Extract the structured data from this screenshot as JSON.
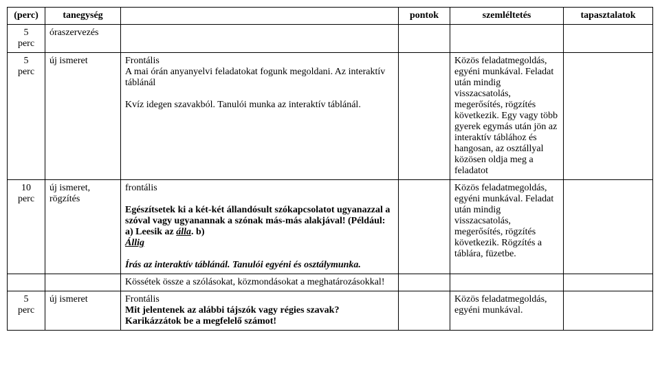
{
  "headers": {
    "perc": "(perc)",
    "tanegyseg": "tanegység",
    "pontok": "pontok",
    "szemleltetes": "szemléltetés",
    "tapasztalatok": "tapasztalatok"
  },
  "rows": {
    "r1": {
      "perc_top": "5",
      "perc_unit": "perc",
      "tanegyseg": "óraszervezés"
    },
    "r2": {
      "perc_top": "5",
      "perc_unit": "perc",
      "tanegyseg": "új ismeret",
      "main_l1": "Frontális",
      "main_l2": "A mai órán anyanyelvi feladatokat fogunk megoldani. Az interaktív táblánál",
      "main_l3": "Kvíz idegen szavakból. Tanulói munka az interaktív táblánál.",
      "szem": "Közös feladatmegoldás, egyéni munkával. Feladat után mindig visszacsatolás, megerősítés, rögzítés következik. Egy vagy több gyerek egymás után jön az interaktív táblához és hangosan, az osztállyal közösen oldja meg a feladatot"
    },
    "r3": {
      "perc_top": "10",
      "perc_unit": "perc",
      "tanegyseg": "új ismeret, rögzítés",
      "main_head": "frontális",
      "main_p1a": "Egészítsetek ki a két-két állandósult szókapcsolatot ugyanazzal a szóval vagy ugyanannak a szónak más-más alakjával! (Például: a) Leesik az ",
      "main_alla": "álla",
      "main_p1b": ". b) ",
      "main_allig": "Állig",
      "main_p2": "Írás az interaktív táblánál. Tanulói egyéni és osztálymunka.",
      "szem": "Közös feladatmegoldás, egyéni munkával. Feladat után mindig visszacsatolás, megerősítés, rögzítés következik. Rögzítés a táblára, füzetbe."
    },
    "r4": {
      "main": "Kössétek össze a szólásokat, közmondásokat a meghatározásokkal!"
    },
    "r5": {
      "perc_top": "5",
      "perc_unit": "perc",
      "tanegyseg": "új ismeret",
      "main_l1": "Frontális",
      "main_l2": "Mit jelentenek az alábbi tájszók vagy régies szavak? Karikázzátok be a megfelelő számot!",
      "szem": "Közös feladatmegoldás, egyéni munkával."
    }
  }
}
